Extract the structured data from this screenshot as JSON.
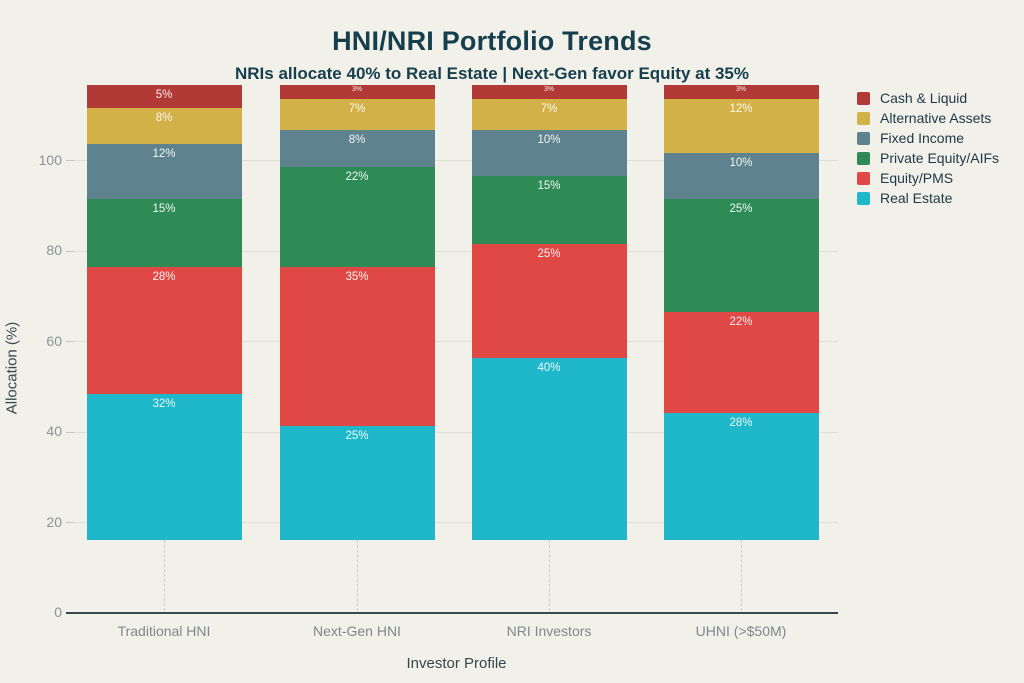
{
  "colors": {
    "background": "#f1f0e9",
    "title_text": "#163f4e",
    "axis_line": "#3c474d",
    "tick_text": "#8b9298",
    "axis_title_text": "#36474f",
    "gridline": "#e0dfd7",
    "legend_text": "#1e3847",
    "bar_label": "#ffffff"
  },
  "chart_data": {
    "type": "bar",
    "stacked": true,
    "title": "HNI/NRI Portfolio Trends",
    "subtitle": "NRIs allocate 40% to Real Estate | Next-Gen favor Equity at 35%",
    "xlabel": "Investor Profile",
    "ylabel": "Allocation (%)",
    "categories": [
      "Traditional HNI",
      "Next-Gen HNI",
      "NRI Investors",
      "UHNI (>$50M)"
    ],
    "series": [
      {
        "name": "Cash & Liquid",
        "color": "#b23a36",
        "values": [
          5,
          3,
          3,
          3
        ]
      },
      {
        "name": "Alternative Assets",
        "color": "#d2b148",
        "values": [
          8,
          7,
          7,
          12
        ]
      },
      {
        "name": "Fixed Income",
        "color": "#5f838e",
        "values": [
          12,
          8,
          10,
          10
        ]
      },
      {
        "name": "Private Equity/AIFs",
        "color": "#2e8b55",
        "values": [
          15,
          22,
          15,
          25
        ]
      },
      {
        "name": "Equity/PMS",
        "color": "#e04845",
        "values": [
          28,
          35,
          25,
          22
        ]
      },
      {
        "name": "Real Estate",
        "color": "#1fb7ca",
        "values": [
          32,
          25,
          40,
          28
        ]
      }
    ],
    "value_suffix": "%",
    "yticks": [
      0,
      20,
      40,
      60,
      80,
      100
    ],
    "grid": true,
    "legend_position": "right",
    "legend_order": "top-of-stack-first"
  }
}
